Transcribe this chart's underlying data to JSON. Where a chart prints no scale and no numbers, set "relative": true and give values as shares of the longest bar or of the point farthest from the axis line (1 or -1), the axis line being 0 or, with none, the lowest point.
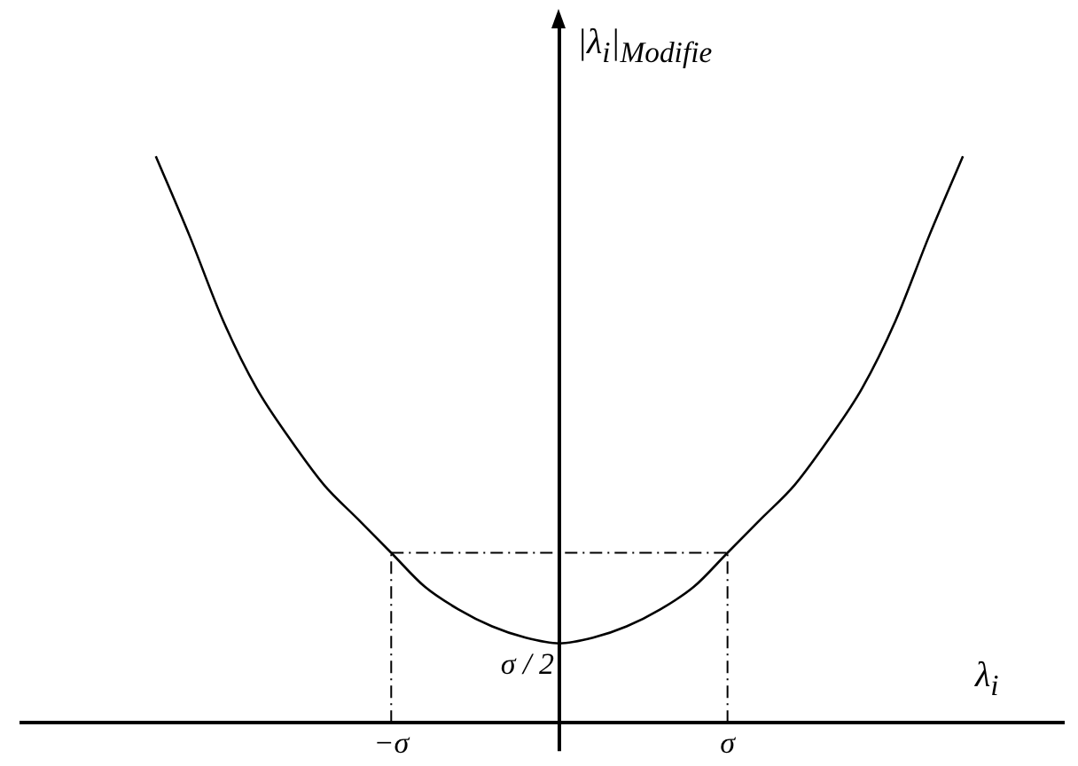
{
  "chart_data": {
    "type": "line",
    "relative": true,
    "ylabel": "|λ$_{i}$|$_{Modifie}$",
    "xlabel": "λ$_{i}$",
    "categories": [
      null,
      null,
      null,
      null,
      null,
      null,
      null,
      null,
      null,
      null,
      null,
      "−σ",
      null,
      null,
      null,
      null,
      null,
      null,
      null,
      null,
      null,
      "σ",
      null,
      null,
      null,
      null,
      null,
      null,
      null,
      null,
      null,
      null
    ],
    "grid": false,
    "legend": false,
    "marker": "none",
    "annotations": [
      {
        "text": "σ / 2",
        "y": 0.14
      }
    ],
    "ref_lines": [
      {
        "axis": "x",
        "value": "−σ",
        "color": "#000000",
        "line_style": "dashed"
      },
      {
        "axis": "x",
        "value": "σ",
        "color": "#000000",
        "line_style": "dashed"
      }
    ],
    "series": [
      {
        "color": "#000000",
        "line_style": "solid",
        "values": [
          null,
          null,
          null,
          null,
          1.0,
          0.86,
          0.71,
          0.59,
          0.5,
          0.42,
          0.36,
          0.3,
          0.24,
          0.2,
          0.17,
          0.15,
          0.14,
          0.15,
          0.17,
          0.2,
          0.24,
          0.3,
          0.36,
          0.42,
          0.5,
          0.59,
          0.71,
          0.86,
          1.0,
          null,
          null,
          null
        ]
      },
      {
        "color": "#000000",
        "line_style": "dashed",
        "values": [
          null,
          null,
          null,
          null,
          null,
          null,
          null,
          null,
          null,
          null,
          null,
          0.3,
          0.3,
          0.3,
          0.3,
          0.3,
          0.3,
          0.3,
          0.3,
          0.3,
          0.3,
          0.3,
          null,
          null,
          null,
          null,
          null,
          null,
          null,
          null,
          null,
          null
        ]
      }
    ]
  }
}
